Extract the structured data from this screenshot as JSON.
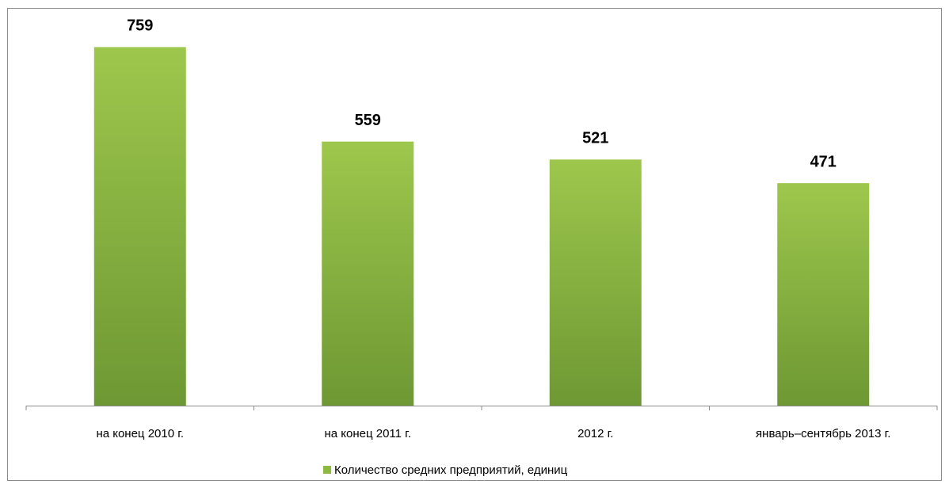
{
  "chart_data": {
    "type": "bar",
    "categories": [
      "на конец 2010 г.",
      "на конец 2011 г.",
      "2012 г.",
      "январь–сентябрь 2013 г."
    ],
    "series": [
      {
        "name": "Количество средних предприятий, единиц",
        "color": "#8db842",
        "values": [
          759,
          559,
          521,
          471
        ]
      }
    ],
    "ylim": [
      0,
      800
    ],
    "legend": "bottom"
  }
}
